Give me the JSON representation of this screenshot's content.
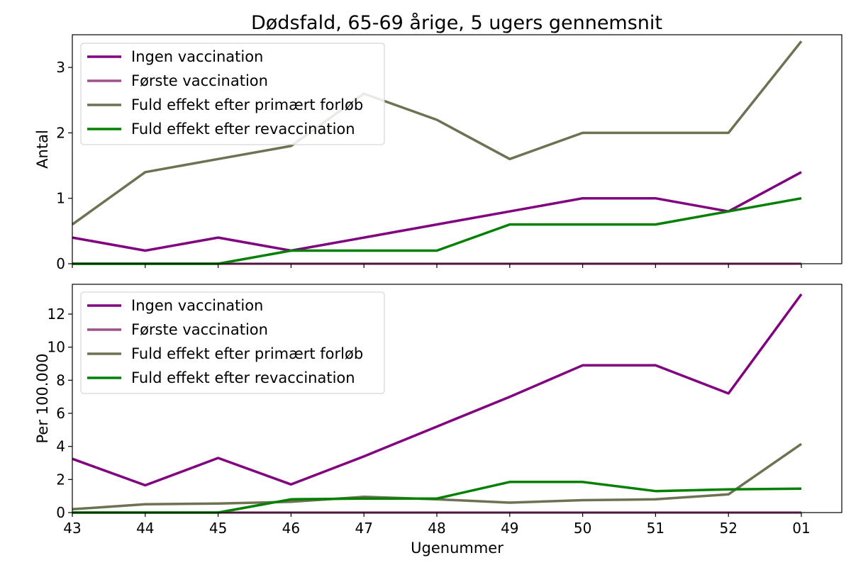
{
  "title": "Dødsfald, 65-69 årige, 5 ugers gennemsnit",
  "colors": {
    "ingen": "#800080",
    "forste": "#a0508a",
    "fuld": "#6e7152",
    "revacc": "#008000"
  },
  "chart_data": [
    {
      "type": "line",
      "title": "Dødsfald, 65-69 årige, 5 ugers gennemsnit",
      "xlabel": "",
      "ylabel": "Antal",
      "categories": [
        "43",
        "44",
        "45",
        "46",
        "47",
        "48",
        "49",
        "50",
        "51",
        "52",
        "01"
      ],
      "ylim": [
        0,
        3.5
      ],
      "yticks": [
        "0",
        "1",
        "2",
        "3"
      ],
      "yticks_values": [
        0,
        1,
        2,
        3
      ],
      "legend": "top-left",
      "grid": false,
      "series": [
        {
          "name": "Ingen vaccination",
          "color": "#800080",
          "values": [
            0.4,
            0.2,
            0.4,
            0.2,
            0.4,
            0.6,
            0.8,
            1.0,
            1.0,
            0.8,
            1.4
          ]
        },
        {
          "name": "Første vaccination",
          "color": "#a0508a",
          "values": [
            0,
            0,
            0,
            0,
            0,
            0,
            0,
            0,
            0,
            0,
            0
          ]
        },
        {
          "name": "Fuld effekt efter primært forløb",
          "color": "#6e7152",
          "values": [
            0.6,
            1.4,
            1.6,
            1.8,
            2.6,
            2.2,
            1.6,
            2.0,
            2.0,
            2.0,
            3.4
          ]
        },
        {
          "name": "Fuld effekt efter revaccination",
          "color": "#008000",
          "values": [
            0,
            0,
            0,
            0.2,
            0.2,
            0.2,
            0.6,
            0.6,
            0.6,
            0.8,
            1.0
          ]
        }
      ]
    },
    {
      "type": "line",
      "xlabel": "Ugenummer",
      "ylabel": "Per 100.000",
      "categories": [
        "43",
        "44",
        "45",
        "46",
        "47",
        "48",
        "49",
        "50",
        "51",
        "52",
        "01"
      ],
      "ylim": [
        0,
        13.8
      ],
      "yticks": [
        "0",
        "2",
        "4",
        "6",
        "8",
        "10",
        "12"
      ],
      "yticks_values": [
        0,
        2,
        4,
        6,
        8,
        10,
        12
      ],
      "legend": "top-left",
      "grid": false,
      "series": [
        {
          "name": "Ingen vaccination",
          "color": "#800080",
          "values": [
            3.25,
            1.65,
            3.3,
            1.7,
            3.4,
            5.2,
            7.0,
            8.9,
            8.9,
            7.2,
            13.2
          ]
        },
        {
          "name": "Første vaccination",
          "color": "#a0508a",
          "values": [
            0,
            0,
            0,
            0,
            0,
            0,
            0,
            0,
            0,
            0,
            0
          ]
        },
        {
          "name": "Fuld effekt efter primært forløb",
          "color": "#6e7152",
          "values": [
            0.2,
            0.5,
            0.55,
            0.65,
            0.95,
            0.8,
            0.6,
            0.75,
            0.8,
            1.1,
            4.15
          ]
        },
        {
          "name": "Fuld effekt efter revaccination",
          "color": "#008000",
          "values": [
            0,
            0,
            0,
            0.8,
            0.85,
            0.85,
            1.85,
            1.85,
            1.3,
            1.4,
            1.45
          ]
        }
      ]
    }
  ]
}
